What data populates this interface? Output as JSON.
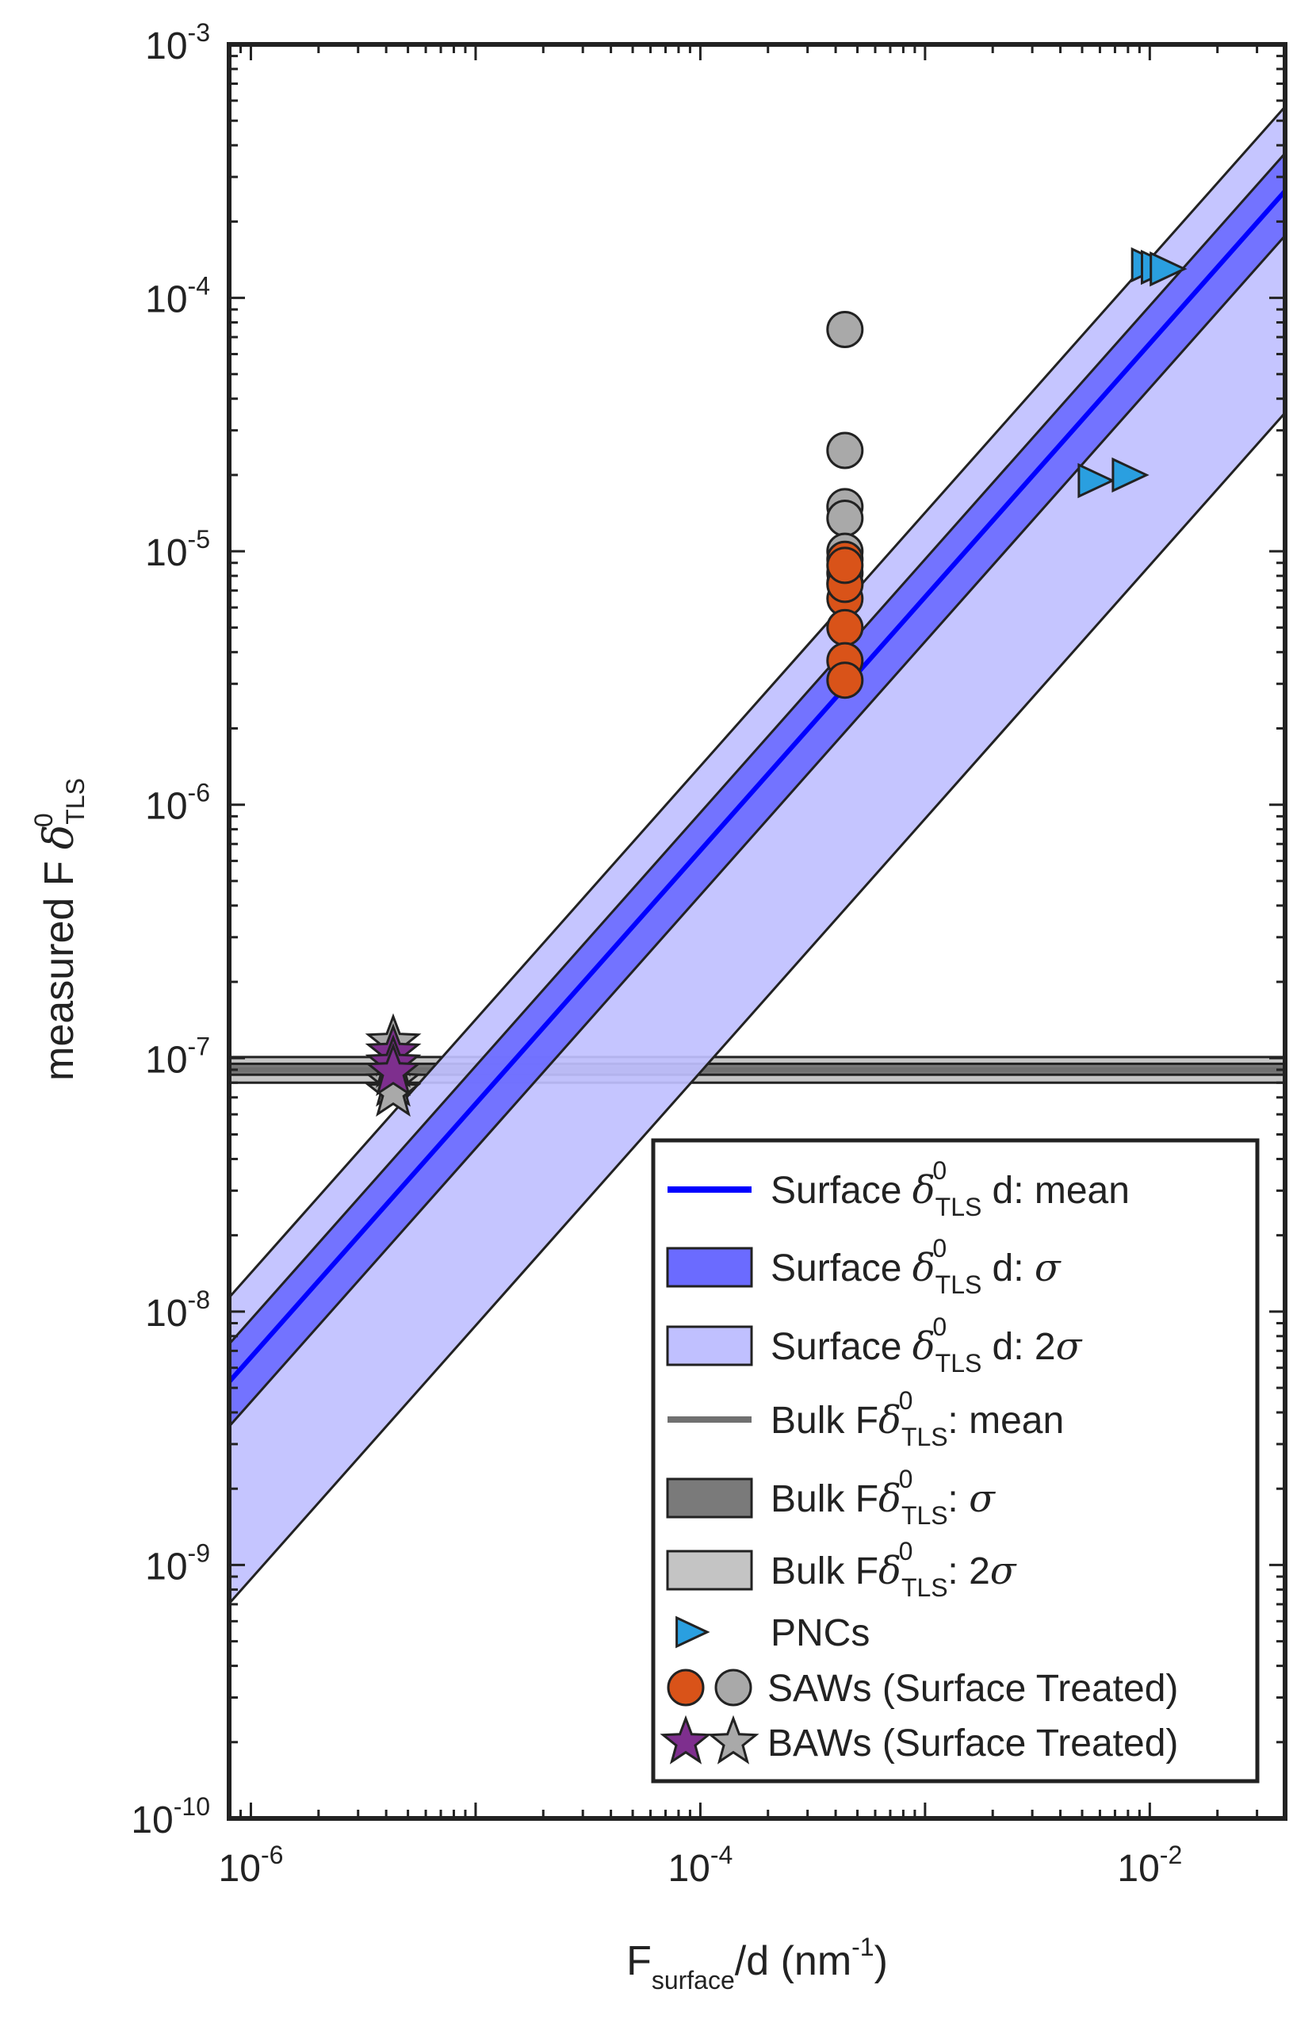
{
  "chart_data": {
    "type": "scatter",
    "x_scale": "log",
    "y_scale": "log",
    "xlim": [
      8e-07,
      0.04
    ],
    "ylim": [
      1e-10,
      0.001
    ],
    "x_ticks": [
      {
        "base": "10",
        "exp": "-6",
        "value": 1e-06
      },
      {
        "base": "10",
        "exp": "-4",
        "value": 0.0001
      },
      {
        "base": "10",
        "exp": "-2",
        "value": 0.01
      }
    ],
    "y_ticks": [
      {
        "base": "10",
        "exp": "-10",
        "value": 1e-10
      },
      {
        "base": "10",
        "exp": "-9",
        "value": 1e-09
      },
      {
        "base": "10",
        "exp": "-8",
        "value": 1e-08
      },
      {
        "base": "10",
        "exp": "-7",
        "value": 1e-07
      },
      {
        "base": "10",
        "exp": "-6",
        "value": 1e-06
      },
      {
        "base": "10",
        "exp": "-5",
        "value": 1e-05
      },
      {
        "base": "10",
        "exp": "-4",
        "value": 0.0001
      },
      {
        "base": "10",
        "exp": "-3",
        "value": 0.001
      }
    ],
    "xlabel": {
      "main": "F",
      "sub": "surface",
      "after": "/d (nm",
      "sup": "-1",
      "close": ")"
    },
    "ylabel": {
      "main": "measured F ",
      "symbol": "δ",
      "sub": "TLS",
      "sup": "0"
    },
    "surface_line": {
      "slope": 1,
      "mean_coeff": 0.0066,
      "sigma_lo": 0.0044,
      "sigma_hi": 0.0093,
      "two_sigma_lo": 0.00088,
      "two_sigma_hi": 0.0142,
      "color": "#0000ff",
      "sigma_color": "#6b6bff",
      "two_sigma_color": "#c0c0ff"
    },
    "bulk_band": {
      "mean": 9e-08,
      "sigma_lo": 8.6e-08,
      "sigma_hi": 9.5e-08,
      "two_sigma_lo": 8e-08,
      "two_sigma_hi": 1.01e-07,
      "color": "#707070",
      "sigma_color": "#7a7a7a",
      "two_sigma_color": "#c4c4c4"
    },
    "series": [
      {
        "name": "PNCs",
        "marker": "triangle-right",
        "color": "#2a9fe0",
        "x": [
          0.0095,
          0.0105,
          0.0115,
          0.0055,
          0.0078
        ],
        "y": [
          0.000135,
          0.000132,
          0.00013,
          1.9e-05,
          2e-05
        ]
      },
      {
        "name": "SAWs (Surface Treated)",
        "marker": "circle",
        "color": "#d95319",
        "x": [
          0.00044,
          0.00044,
          0.00044,
          0.00044,
          0.00044,
          0.00044,
          0.00044,
          0.00044
        ],
        "y": [
          9.3e-06,
          8.2e-06,
          6.5e-06,
          5e-06,
          3.7e-06,
          3.1e-06,
          7.4e-06,
          8.8e-06
        ]
      },
      {
        "name": "SAWs (Surface Treated) gray",
        "marker": "circle",
        "color": "#a9a9a9",
        "x": [
          0.00044,
          0.00044,
          0.00044,
          0.00044,
          0.00044,
          0.00044
        ],
        "y": [
          7.5e-05,
          2.5e-05,
          1.5e-05,
          1.35e-05,
          1e-05,
          7.5e-06
        ]
      },
      {
        "name": "BAWs (Surface Treated)",
        "marker": "star",
        "color": "#7e2f8e",
        "x": [
          4.3e-06,
          4.3e-06,
          4.3e-06
        ],
        "y": [
          1.05e-07,
          9.5e-08,
          8.8e-08
        ]
      },
      {
        "name": "BAWs (Surface Treated) gray",
        "marker": "star",
        "color": "#a9a9a9",
        "x": [
          4.3e-06,
          4.3e-06,
          4.3e-06
        ],
        "y": [
          1.15e-07,
          8e-08,
          7.3e-08
        ]
      }
    ],
    "legend": {
      "placement": "bottom-right",
      "entries": [
        {
          "pre": "Surface ",
          "sym": "δ",
          "sub": "TLS",
          "sup": "0",
          "post": " d: mean",
          "post_italic": ""
        },
        {
          "pre": "Surface ",
          "sym": "δ",
          "sub": "TLS",
          "sup": "0",
          "post": " d: ",
          "post_italic": "σ"
        },
        {
          "pre": "Surface ",
          "sym": "δ",
          "sub": "TLS",
          "sup": "0",
          "post": " d: 2",
          "post_italic": "σ"
        },
        {
          "pre": "Bulk F",
          "sym": "δ",
          "sub": "TLS",
          "sup": "0",
          "post": ": mean",
          "post_italic": ""
        },
        {
          "pre": "Bulk F",
          "sym": "δ",
          "sub": "TLS",
          "sup": "0",
          "post": ": ",
          "post_italic": "σ"
        },
        {
          "pre": "Bulk F",
          "sym": "δ",
          "sub": "TLS",
          "sup": "0",
          "post": ": 2",
          "post_italic": "σ"
        },
        {
          "pre": "PNCs",
          "sym": "",
          "sub": "",
          "sup": "",
          "post": "",
          "post_italic": ""
        },
        {
          "pre": "SAWs (Surface Treated)",
          "sym": "",
          "sub": "",
          "sup": "",
          "post": "",
          "post_italic": ""
        },
        {
          "pre": "BAWs (Surface Treated)",
          "sym": "",
          "sub": "",
          "sup": "",
          "post": "",
          "post_italic": ""
        }
      ]
    }
  }
}
